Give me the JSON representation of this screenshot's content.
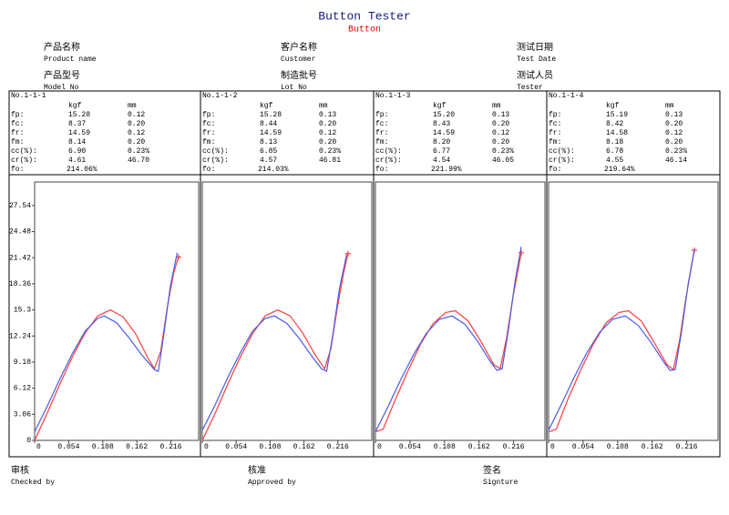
{
  "header": {
    "title": "Button Tester",
    "subtitle": "Button"
  },
  "info": [
    {
      "cn": "产品名称",
      "en": "Product name"
    },
    {
      "cn": "客户名称",
      "en": "Customer"
    },
    {
      "cn": "测试日期",
      "en": "Test Date"
    },
    {
      "cn": "产品型号",
      "en": "Model No"
    },
    {
      "cn": "制造批号",
      "en": "Lot No"
    },
    {
      "cn": "测试人员",
      "en": "Tester"
    }
  ],
  "tables": [
    {
      "id": "No.1-1-1",
      "columns": [
        "kgf",
        "mm"
      ],
      "rows": [
        [
          "fp:",
          "15.28",
          "0.12"
        ],
        [
          "fc:",
          "8.37",
          "0.20"
        ],
        [
          "fr:",
          "14.59",
          "0.12"
        ],
        [
          "fm:",
          "8.14",
          "0.20"
        ],
        [
          "cc(%):",
          "6.90",
          "0.23%"
        ],
        [
          "cr(%):",
          "4.61",
          "46.70"
        ],
        [
          "fo:",
          "214.06%"
        ]
      ]
    },
    {
      "id": "No.1-1-2",
      "columns": [
        "kgf",
        "mm"
      ],
      "rows": [
        [
          "fp:",
          "15.28",
          "0.13"
        ],
        [
          "fc:",
          "8.44",
          "0.20"
        ],
        [
          "fr:",
          "14.59",
          "0.12"
        ],
        [
          "fm:",
          "8.13",
          "0.20"
        ],
        [
          "cc(%):",
          "6.85",
          "0.23%"
        ],
        [
          "cr(%):",
          "4.57",
          "46.81"
        ],
        [
          "fo:",
          "214.03%"
        ]
      ]
    },
    {
      "id": "No.1-1-3",
      "columns": [
        "kgf",
        "mm"
      ],
      "rows": [
        [
          "fp:",
          "15.20",
          "0.13"
        ],
        [
          "fc:",
          "8.43",
          "0.20"
        ],
        [
          "fr:",
          "14.59",
          "0.12"
        ],
        [
          "fm:",
          "8.20",
          "0.20"
        ],
        [
          "cc(%):",
          "6.77",
          "0.23%"
        ],
        [
          "cr(%):",
          "4.54",
          "46.05"
        ],
        [
          "fo:",
          "221.99%"
        ]
      ]
    },
    {
      "id": "No.1-1-4",
      "columns": [
        "kgf",
        "mm"
      ],
      "rows": [
        [
          "fp:",
          "15.19",
          "0.13"
        ],
        [
          "fc:",
          "8.42",
          "0.20"
        ],
        [
          "fr:",
          "14.58",
          "0.12"
        ],
        [
          "fm:",
          "8.18",
          "0.20"
        ],
        [
          "cc(%):",
          "6.78",
          "0.23%"
        ],
        [
          "cr(%):",
          "4.55",
          "46.14"
        ],
        [
          "fo:",
          "219.64%"
        ]
      ]
    }
  ],
  "chart_data": [
    {
      "type": "line",
      "xlim": [
        0,
        0.26
      ],
      "ylim": [
        0,
        30.3
      ],
      "xticks": [
        0,
        0.054,
        0.108,
        0.162,
        0.216
      ],
      "yticks": [
        0,
        3.06,
        6.12,
        9.18,
        12.24,
        15.3,
        18.36,
        21.42,
        24.48,
        27.54
      ],
      "series": [
        {
          "color": "#ff3b3b",
          "x": [
            0,
            0.02,
            0.04,
            0.06,
            0.08,
            0.1,
            0.12,
            0.14,
            0.16,
            0.18,
            0.19,
            0.2,
            0.21,
            0.22,
            0.228
          ],
          "values": [
            0,
            3.2,
            6.6,
            9.8,
            12.6,
            14.6,
            15.3,
            14.5,
            12.5,
            9.6,
            8.4,
            10.5,
            15.5,
            19.5,
            21.5
          ]
        },
        {
          "color": "#4a5ae8",
          "x": [
            0,
            0.02,
            0.04,
            0.06,
            0.08,
            0.1,
            0.11,
            0.13,
            0.15,
            0.17,
            0.19,
            0.196,
            0.205,
            0.215,
            0.226
          ],
          "values": [
            1,
            4,
            7.2,
            10.2,
            12.8,
            14.3,
            14.6,
            13.8,
            12,
            10,
            8.3,
            8.1,
            12.5,
            18,
            22
          ]
        }
      ]
    },
    {
      "type": "line",
      "xlim": [
        0,
        0.27
      ],
      "ylim": [
        0,
        30.3
      ],
      "xticks": [
        0,
        0.054,
        0.108,
        0.162,
        0.216
      ],
      "series": [
        {
          "color": "#ff3b3b",
          "x": [
            0,
            0.02,
            0.04,
            0.06,
            0.08,
            0.1,
            0.12,
            0.14,
            0.16,
            0.18,
            0.195,
            0.205,
            0.215,
            0.225,
            0.232
          ],
          "values": [
            0,
            3.1,
            6.5,
            9.7,
            12.5,
            14.6,
            15.3,
            14.6,
            12.6,
            10,
            8.4,
            10.8,
            15.5,
            19.6,
            21.9
          ]
        },
        {
          "color": "#4a5ae8",
          "x": [
            0,
            0.02,
            0.04,
            0.06,
            0.08,
            0.1,
            0.115,
            0.135,
            0.155,
            0.175,
            0.19,
            0.198,
            0.208,
            0.218,
            0.23
          ],
          "values": [
            1.2,
            4.1,
            7.3,
            10.2,
            12.8,
            14.3,
            14.6,
            13.7,
            11.9,
            9.8,
            8.4,
            8.1,
            12.4,
            17.6,
            21.8
          ]
        }
      ]
    },
    {
      "type": "line",
      "xlim": [
        0,
        0.265
      ],
      "ylim": [
        0,
        30.3
      ],
      "xticks": [
        0,
        0.054,
        0.108,
        0.162,
        0.216
      ],
      "series": [
        {
          "color": "#ff3b3b",
          "x": [
            0,
            0.012,
            0.03,
            0.05,
            0.07,
            0.09,
            0.11,
            0.125,
            0.145,
            0.165,
            0.185,
            0.195,
            0.205,
            0.215,
            0.228
          ],
          "values": [
            1,
            1.3,
            4.6,
            8,
            11.2,
            13.7,
            15,
            15.2,
            14,
            11.6,
            8.9,
            8.4,
            12,
            16.8,
            22
          ]
        },
        {
          "color": "#4a5ae8",
          "x": [
            0,
            0.02,
            0.04,
            0.06,
            0.08,
            0.1,
            0.12,
            0.14,
            0.16,
            0.18,
            0.19,
            0.198,
            0.208,
            0.218,
            0.228
          ],
          "values": [
            1,
            4,
            7.2,
            10.1,
            12.6,
            14.2,
            14.6,
            13.6,
            11.6,
            9.2,
            8.2,
            8.4,
            13,
            18.5,
            22.7
          ]
        }
      ]
    },
    {
      "type": "line",
      "xlim": [
        0,
        0.265
      ],
      "ylim": [
        0,
        30.3
      ],
      "xticks": [
        0,
        0.054,
        0.108,
        0.162,
        0.216
      ],
      "series": [
        {
          "color": "#ff3b3b",
          "x": [
            0,
            0.012,
            0.03,
            0.05,
            0.07,
            0.09,
            0.11,
            0.125,
            0.145,
            0.165,
            0.185,
            0.195,
            0.205,
            0.215,
            0.228
          ],
          "values": [
            1,
            1.3,
            4.8,
            8.2,
            11.3,
            13.8,
            15,
            15.2,
            14,
            11.5,
            8.9,
            8.3,
            11.8,
            16.8,
            22.3
          ]
        },
        {
          "color": "#4a5ae8",
          "x": [
            0,
            0.02,
            0.04,
            0.06,
            0.08,
            0.1,
            0.12,
            0.14,
            0.16,
            0.18,
            0.19,
            0.198,
            0.208,
            0.218,
            0.228
          ],
          "values": [
            1.2,
            4.2,
            7.4,
            10.3,
            12.7,
            14.2,
            14.6,
            13.5,
            11.5,
            9.2,
            8.2,
            8.3,
            12.8,
            18.2,
            22.4
          ]
        }
      ]
    }
  ],
  "footer": [
    {
      "cn": "审核",
      "en": "Checked by"
    },
    {
      "cn": "核准",
      "en": "Approved by"
    },
    {
      "cn": "签名",
      "en": "Signture"
    }
  ]
}
